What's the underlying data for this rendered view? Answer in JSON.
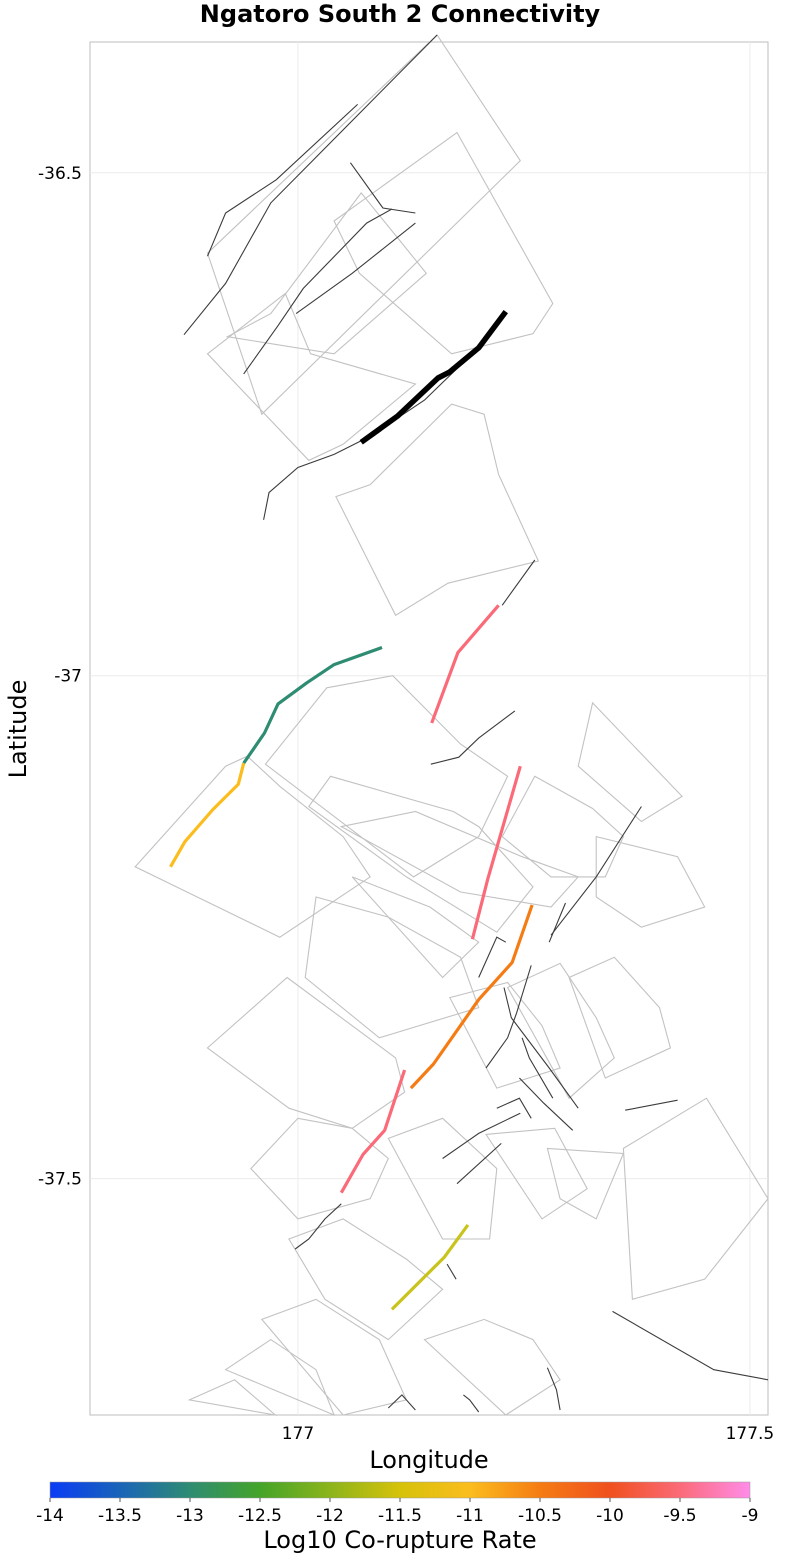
{
  "chart_data": {
    "type": "map",
    "title": "Ngatoro South 2 Connectivity",
    "xlabel": "Longitude",
    "ylabel": "Latitude",
    "xlim": [
      176.77,
      177.52
    ],
    "ylim": [
      -37.735,
      -36.37
    ],
    "x_ticks": [
      {
        "value": 177,
        "label": "177"
      },
      {
        "value": 177.5,
        "label": "177.5"
      }
    ],
    "y_ticks": [
      {
        "value": -36.5,
        "label": "-36.5"
      },
      {
        "value": -37,
        "label": "-37"
      },
      {
        "value": -37.5,
        "label": "-37.5"
      }
    ],
    "grid": true,
    "colorbar": {
      "title": "Log10 Co-rupture Rate",
      "range": [
        -14,
        -9
      ],
      "ticks": [
        "-14",
        "-13.5",
        "-13",
        "-12.5",
        "-12",
        "-11.5",
        "-11",
        "-10.5",
        "-10",
        "-9.5",
        "-9"
      ],
      "stops": [
        {
          "value": -14,
          "color": "#0a3cf5"
        },
        {
          "value": -13.5,
          "color": "#1a64b8"
        },
        {
          "value": -13,
          "color": "#2e8c72"
        },
        {
          "value": -12.5,
          "color": "#44a428"
        },
        {
          "value": -12,
          "color": "#8cb41c"
        },
        {
          "value": -11.5,
          "color": "#d6c20a"
        },
        {
          "value": -11,
          "color": "#fbbd1e"
        },
        {
          "value": -10.5,
          "color": "#f57c14"
        },
        {
          "value": -10,
          "color": "#f0501e"
        },
        {
          "value": -9.5,
          "color": "#fb6a78"
        },
        {
          "value": -9,
          "color": "#ff8ce8"
        }
      ]
    },
    "target_fault": {
      "name": "Ngatoro South 2",
      "color": "#000000",
      "trace": [
        [
          177.07,
          -36.768
        ],
        [
          177.11,
          -36.742
        ],
        [
          177.155,
          -36.704
        ],
        [
          177.168,
          -36.698
        ],
        [
          177.2,
          -36.674
        ],
        [
          177.23,
          -36.638
        ]
      ]
    },
    "ruptures": [
      {
        "name": "rupture-segment-1",
        "log10_rate": -13,
        "color": "#2e8c72",
        "trace": [
          [
            176.94,
            -37.087
          ],
          [
            176.963,
            -37.057
          ],
          [
            176.978,
            -37.028
          ],
          [
            177.01,
            -37.007
          ],
          [
            177.04,
            -36.989
          ],
          [
            177.093,
            -36.972
          ]
        ]
      },
      {
        "name": "rupture-segment-2",
        "log10_rate": -11,
        "color": "#fbbd1e",
        "trace": [
          [
            176.859,
            -37.19
          ],
          [
            176.875,
            -37.165
          ],
          [
            176.906,
            -37.133
          ],
          [
            176.934,
            -37.108
          ],
          [
            176.94,
            -37.087
          ]
        ]
      },
      {
        "name": "rupture-segment-3",
        "log10_rate": -9.5,
        "color": "#fb6a78",
        "trace": [
          [
            177.148,
            -37.047
          ],
          [
            177.177,
            -36.977
          ],
          [
            177.222,
            -36.93
          ]
        ]
      },
      {
        "name": "rupture-segment-4",
        "log10_rate": -9.5,
        "color": "#fb6a78",
        "trace": [
          [
            177.193,
            -37.262
          ],
          [
            177.21,
            -37.202
          ],
          [
            177.246,
            -37.09
          ]
        ]
      },
      {
        "name": "rupture-segment-5",
        "log10_rate": -10.5,
        "color": "#f57c14",
        "trace": [
          [
            177.259,
            -37.228
          ],
          [
            177.237,
            -37.285
          ],
          [
            177.2,
            -37.322
          ],
          [
            177.15,
            -37.386
          ],
          [
            177.125,
            -37.41
          ]
        ]
      },
      {
        "name": "rupture-segment-6",
        "log10_rate": -9.5,
        "color": "#fb6a78",
        "trace": [
          [
            177.118,
            -37.392
          ],
          [
            177.096,
            -37.452
          ],
          [
            177.072,
            -37.476
          ],
          [
            177.048,
            -37.514
          ]
        ]
      },
      {
        "name": "rupture-segment-7",
        "log10_rate": -11.5,
        "color": "#c8c41c",
        "trace": [
          [
            177.188,
            -37.546
          ],
          [
            177.162,
            -37.578
          ],
          [
            177.104,
            -37.63
          ]
        ]
      }
    ],
    "other_fault_traces": [
      [
        [
          176.874,
          -36.661
        ],
        [
          176.92,
          -36.61
        ],
        [
          176.97,
          -36.53
        ],
        [
          177.154,
          -36.363
        ]
      ],
      [
        [
          176.9,
          -36.583
        ],
        [
          176.92,
          -36.54
        ],
        [
          176.976,
          -36.507
        ],
        [
          177.066,
          -36.432
        ]
      ],
      [
        [
          176.94,
          -36.7
        ],
        [
          176.978,
          -36.652
        ],
        [
          177.006,
          -36.615
        ],
        [
          177.076,
          -36.55
        ],
        [
          177.104,
          -36.536
        ]
      ],
      [
        [
          177.058,
          -36.49
        ],
        [
          177.094,
          -36.535
        ],
        [
          177.13,
          -36.54
        ]
      ],
      [
        [
          176.998,
          -36.64
        ],
        [
          177.06,
          -36.6
        ],
        [
          177.13,
          -36.55
        ]
      ],
      [
        [
          176.962,
          -36.845
        ],
        [
          176.968,
          -36.818
        ],
        [
          177.0,
          -36.793
        ],
        [
          177.04,
          -36.78
        ],
        [
          177.08,
          -36.762
        ],
        [
          177.14,
          -36.726
        ],
        [
          177.21,
          -36.665
        ]
      ],
      [
        [
          177.226,
          -36.93
        ],
        [
          177.262,
          -36.885
        ]
      ],
      [
        [
          177.147,
          -37.088
        ],
        [
          177.178,
          -37.081
        ],
        [
          177.2,
          -37.062
        ],
        [
          177.24,
          -37.035
        ]
      ],
      [
        [
          177.23,
          -37.265
        ],
        [
          177.22,
          -37.26
        ],
        [
          177.2,
          -37.3
        ]
      ],
      [
        [
          177.258,
          -37.288
        ],
        [
          177.242,
          -37.335
        ],
        [
          177.232,
          -37.36
        ],
        [
          177.208,
          -37.39
        ]
      ],
      [
        [
          177.296,
          -37.226
        ],
        [
          177.278,
          -37.265
        ]
      ],
      [
        [
          177.28,
          -37.258
        ],
        [
          177.33,
          -37.2
        ],
        [
          177.38,
          -37.13
        ]
      ],
      [
        [
          177.228,
          -37.31
        ],
        [
          177.236,
          -37.34
        ],
        [
          177.278,
          -37.39
        ],
        [
          177.31,
          -37.43
        ]
      ],
      [
        [
          177.248,
          -37.36
        ],
        [
          177.256,
          -37.38
        ],
        [
          177.282,
          -37.42
        ]
      ],
      [
        [
          177.362,
          -37.432
        ],
        [
          177.42,
          -37.422
        ]
      ],
      [
        [
          177.245,
          -37.4
        ],
        [
          177.272,
          -37.425
        ],
        [
          177.304,
          -37.452
        ]
      ],
      [
        [
          177.22,
          -37.43
        ],
        [
          177.245,
          -37.42
        ],
        [
          177.258,
          -37.44
        ]
      ],
      [
        [
          177.16,
          -37.48
        ],
        [
          177.2,
          -37.455
        ],
        [
          177.246,
          -37.435
        ]
      ],
      [
        [
          177.176,
          -37.505
        ],
        [
          177.225,
          -37.465
        ]
      ],
      [
        [
          176.997,
          -37.57
        ],
        [
          177.012,
          -37.56
        ],
        [
          177.03,
          -37.54
        ],
        [
          177.048,
          -37.525
        ]
      ],
      [
        [
          177.165,
          -37.585
        ],
        [
          177.175,
          -37.6
        ]
      ],
      [
        [
          177.348,
          -37.632
        ],
        [
          177.46,
          -37.69
        ],
        [
          177.52,
          -37.7
        ]
      ],
      [
        [
          177.183,
          -37.715
        ],
        [
          177.19,
          -37.72
        ],
        [
          177.2,
          -37.732
        ]
      ],
      [
        [
          177.276,
          -37.688
        ],
        [
          177.286,
          -37.71
        ],
        [
          177.29,
          -37.73
        ]
      ],
      [
        [
          177.1,
          -37.728
        ],
        [
          177.115,
          -37.715
        ],
        [
          177.13,
          -37.73
        ]
      ]
    ],
    "rupture_polygons": [
      [
        [
          176.9,
          -36.58
        ],
        [
          177.154,
          -36.363
        ],
        [
          177.246,
          -36.488
        ],
        [
          176.96,
          -36.74
        ]
      ],
      [
        [
          176.922,
          -36.663
        ],
        [
          176.97,
          -36.64
        ],
        [
          177.07,
          -36.52
        ],
        [
          177.142,
          -36.6
        ],
        [
          177.04,
          -36.68
        ]
      ],
      [
        [
          177.04,
          -36.548
        ],
        [
          177.176,
          -36.46
        ],
        [
          177.282,
          -36.63
        ],
        [
          177.26,
          -36.66
        ],
        [
          177.17,
          -36.68
        ],
        [
          177.068,
          -36.6
        ]
      ],
      [
        [
          176.9,
          -36.68
        ],
        [
          176.986,
          -36.62
        ],
        [
          177.014,
          -36.68
        ],
        [
          177.13,
          -36.71
        ],
        [
          177.05,
          -36.77
        ],
        [
          177.012,
          -36.786
        ]
      ],
      [
        [
          177.042,
          -36.822
        ],
        [
          177.08,
          -36.81
        ],
        [
          177.17,
          -36.73
        ],
        [
          177.206,
          -36.74
        ],
        [
          177.222,
          -36.8
        ],
        [
          177.266,
          -36.886
        ],
        [
          177.166,
          -36.908
        ],
        [
          177.108,
          -36.94
        ]
      ],
      [
        [
          176.964,
          -37.088
        ],
        [
          177.032,
          -37.012
        ],
        [
          177.105,
          -37.0
        ],
        [
          177.18,
          -37.068
        ],
        [
          177.232,
          -37.1
        ],
        [
          177.2,
          -37.16
        ],
        [
          177.128,
          -37.2
        ]
      ],
      [
        [
          177.012,
          -37.13
        ],
        [
          177.036,
          -37.1
        ],
        [
          177.172,
          -37.135
        ],
        [
          177.2,
          -37.15
        ],
        [
          177.26,
          -37.21
        ],
        [
          177.22,
          -37.255
        ],
        [
          177.12,
          -37.2
        ]
      ],
      [
        [
          177.048,
          -37.15
        ],
        [
          177.13,
          -37.135
        ],
        [
          177.248,
          -37.18
        ],
        [
          177.31,
          -37.2
        ],
        [
          177.28,
          -37.23
        ],
        [
          177.18,
          -37.215
        ]
      ],
      [
        [
          177.06,
          -37.2
        ],
        [
          177.146,
          -37.23
        ],
        [
          177.2,
          -37.265
        ],
        [
          177.16,
          -37.3
        ],
        [
          177.1,
          -37.24
        ]
      ],
      [
        [
          177.226,
          -37.16
        ],
        [
          177.262,
          -37.1
        ],
        [
          177.326,
          -37.132
        ],
        [
          177.36,
          -37.16
        ],
        [
          177.34,
          -37.2
        ],
        [
          177.28,
          -37.2
        ]
      ],
      [
        [
          177.326,
          -37.027
        ],
        [
          177.425,
          -37.12
        ],
        [
          177.38,
          -37.145
        ],
        [
          177.31,
          -37.09
        ]
      ],
      [
        [
          177.33,
          -37.16
        ],
        [
          177.42,
          -37.18
        ],
        [
          177.45,
          -37.23
        ],
        [
          177.38,
          -37.25
        ],
        [
          177.33,
          -37.22
        ]
      ],
      [
        [
          176.82,
          -37.19
        ],
        [
          176.92,
          -37.09
        ],
        [
          176.944,
          -37.08
        ],
        [
          176.98,
          -37.11
        ],
        [
          177.05,
          -37.16
        ],
        [
          177.08,
          -37.2
        ],
        [
          176.98,
          -37.26
        ]
      ],
      [
        [
          177.02,
          -37.22
        ],
        [
          177.1,
          -37.24
        ],
        [
          177.18,
          -37.28
        ],
        [
          177.2,
          -37.33
        ],
        [
          177.09,
          -37.36
        ],
        [
          177.008,
          -37.3
        ]
      ],
      [
        [
          176.9,
          -37.37
        ],
        [
          176.988,
          -37.3
        ],
        [
          177.108,
          -37.38
        ],
        [
          177.118,
          -37.414
        ],
        [
          177.06,
          -37.45
        ],
        [
          176.99,
          -37.43
        ]
      ],
      [
        [
          177.168,
          -37.32
        ],
        [
          177.232,
          -37.305
        ],
        [
          177.27,
          -37.348
        ],
        [
          177.29,
          -37.39
        ],
        [
          177.22,
          -37.41
        ]
      ],
      [
        [
          177.232,
          -37.31
        ],
        [
          177.29,
          -37.286
        ],
        [
          177.33,
          -37.34
        ],
        [
          177.35,
          -37.38
        ],
        [
          177.3,
          -37.42
        ]
      ],
      [
        [
          177.3,
          -37.3
        ],
        [
          177.35,
          -37.28
        ],
        [
          177.4,
          -37.33
        ],
        [
          177.412,
          -37.37
        ],
        [
          177.34,
          -37.4
        ]
      ],
      [
        [
          176.948,
          -37.49
        ],
        [
          177.0,
          -37.44
        ],
        [
          177.06,
          -37.45
        ],
        [
          177.1,
          -37.48
        ],
        [
          177.08,
          -37.52
        ],
        [
          177.0,
          -37.54
        ]
      ],
      [
        [
          177.1,
          -37.46
        ],
        [
          177.16,
          -37.44
        ],
        [
          177.22,
          -37.49
        ],
        [
          177.212,
          -37.56
        ],
        [
          177.16,
          -37.56
        ]
      ],
      [
        [
          177.208,
          -37.456
        ],
        [
          177.284,
          -37.45
        ],
        [
          177.32,
          -37.51
        ],
        [
          177.27,
          -37.54
        ]
      ],
      [
        [
          177.276,
          -37.47
        ],
        [
          177.36,
          -37.475
        ],
        [
          177.33,
          -37.54
        ],
        [
          177.29,
          -37.52
        ]
      ],
      [
        [
          177.36,
          -37.47
        ],
        [
          177.452,
          -37.42
        ],
        [
          177.52,
          -37.52
        ],
        [
          177.45,
          -37.6
        ],
        [
          177.37,
          -37.62
        ]
      ],
      [
        [
          176.99,
          -37.56
        ],
        [
          177.05,
          -37.54
        ],
        [
          177.12,
          -37.58
        ],
        [
          177.16,
          -37.61
        ],
        [
          177.1,
          -37.66
        ],
        [
          177.03,
          -37.62
        ]
      ],
      [
        [
          176.96,
          -37.64
        ],
        [
          177.02,
          -37.62
        ],
        [
          177.09,
          -37.66
        ],
        [
          177.12,
          -37.72
        ],
        [
          177.05,
          -37.735
        ]
      ],
      [
        [
          177.14,
          -37.66
        ],
        [
          177.206,
          -37.64
        ],
        [
          177.26,
          -37.66
        ],
        [
          177.29,
          -37.7
        ],
        [
          177.23,
          -37.735
        ]
      ],
      [
        [
          176.92,
          -37.69
        ],
        [
          176.97,
          -37.66
        ],
        [
          177.02,
          -37.69
        ],
        [
          177.04,
          -37.735
        ]
      ],
      [
        [
          176.88,
          -37.72
        ],
        [
          176.93,
          -37.7
        ],
        [
          176.975,
          -37.735
        ]
      ]
    ]
  }
}
